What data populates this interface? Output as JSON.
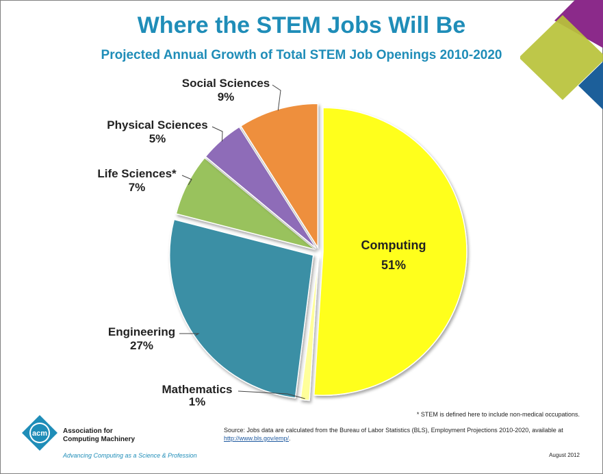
{
  "title": "Where the STEM Jobs Will Be",
  "subtitle": "Projected Annual Growth of Total STEM Job Openings 2010-2020",
  "chart_data": {
    "type": "pie",
    "title": "Where the STEM Jobs Will Be",
    "subtitle": "Projected Annual Growth of Total STEM Job Openings 2010-2020",
    "slices": [
      {
        "name": "Computing",
        "value": 51,
        "label": "51%",
        "color": "#ffff1e"
      },
      {
        "name": "Mathematics",
        "value": 1,
        "label": "1%",
        "color": "#ffff9a"
      },
      {
        "name": "Engineering",
        "value": 27,
        "label": "27%",
        "color": "#3a8fa5"
      },
      {
        "name": "Life Sciences*",
        "value": 7,
        "label": "7%",
        "color": "#99c25d"
      },
      {
        "name": "Physical Sciences",
        "value": 5,
        "label": "5%",
        "color": "#8e6cb8"
      },
      {
        "name": "Social Sciences",
        "value": 9,
        "label": "9%",
        "color": "#ee8f3d"
      }
    ],
    "legend": "none"
  },
  "footnote": "* STEM is defined here to include non-medical occupations.",
  "source": {
    "text": "Source: Jobs data are calculated from the Bureau of Labor Statistics (BLS), Employment Projections 2010-2020, available at",
    "link": "http://www.bls.gov/emp/"
  },
  "date": "August 2012",
  "org": {
    "logo_text": "acm",
    "name_line1": "Association for",
    "name_line2": "Computing Machinery",
    "tagline": "Advancing Computing as a Science & Profession"
  },
  "colors": {
    "title": "#1f8db8",
    "decor_purple": "#8b2a8a",
    "decor_green": "#b8c23a",
    "decor_blue": "#1c5f9a"
  }
}
